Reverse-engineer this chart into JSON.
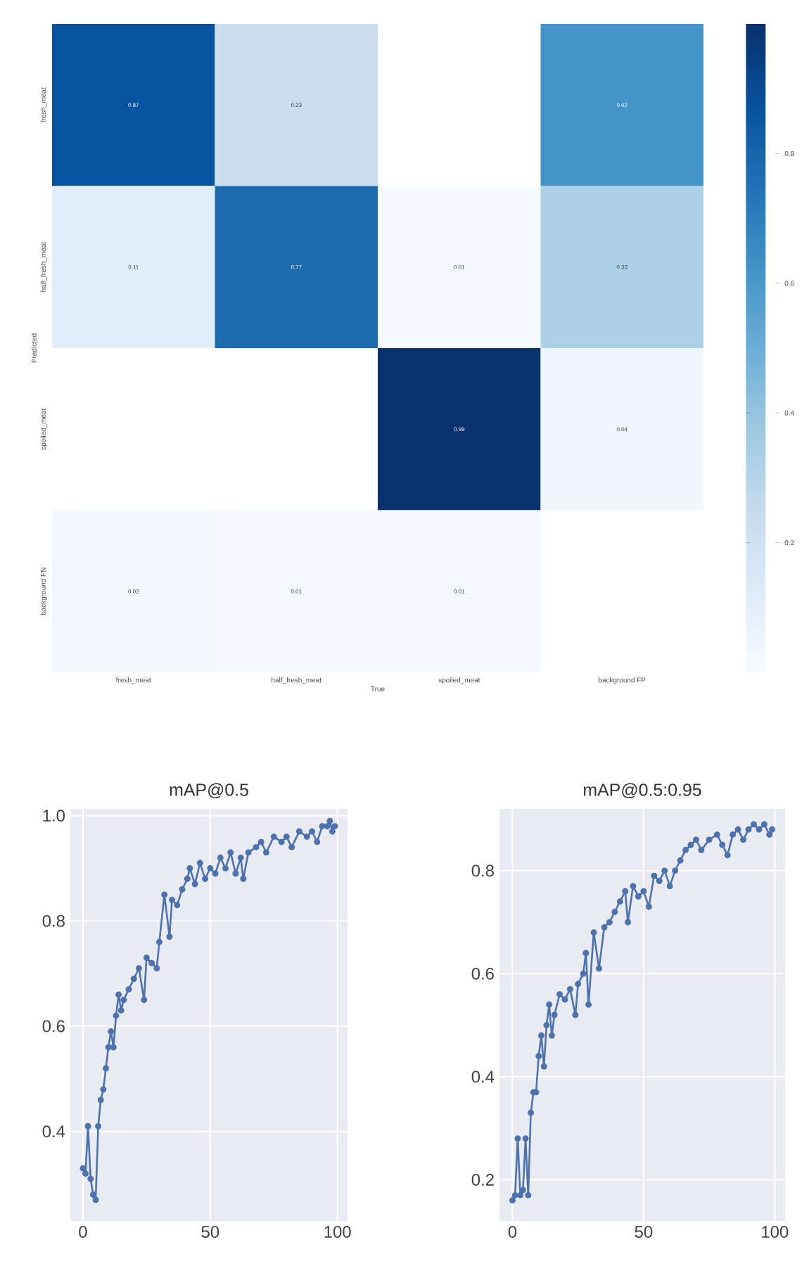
{
  "chart_data": [
    {
      "type": "heatmap",
      "xlabel": "True",
      "ylabel": "Predicted",
      "categories": [
        "fresh_meat",
        "half_fresh_meat",
        "spoiled_meat",
        "background FP"
      ],
      "y_categories": [
        "fresh_meat",
        "half_fresh_meat",
        "spoiled_meat",
        "background FN"
      ],
      "cells": [
        [
          0.87,
          0.23,
          null,
          0.62
        ],
        [
          0.11,
          0.77,
          0.01,
          0.33
        ],
        [
          null,
          null,
          0.99,
          0.04
        ],
        [
          0.02,
          0.01,
          0.01,
          null
        ]
      ],
      "clim": [
        0,
        1
      ],
      "cticks": [
        0.2,
        0.4,
        0.6,
        0.8
      ],
      "data_labels": true
    },
    {
      "type": "line",
      "title": "mAP@0.5",
      "grid": true,
      "marker": "circle",
      "line_style": "solid",
      "xlim": [
        -4.95,
        103.95
      ],
      "ylim": [
        0.23,
        1.013
      ],
      "xticks": [
        0,
        50,
        100
      ],
      "yticks": [
        0.4,
        0.6,
        0.8,
        {
          "value": 1.0,
          "label": "1.0"
        }
      ],
      "series": [
        {
          "color": "#4c72b0",
          "x": [
            0,
            1,
            2,
            3,
            4,
            5,
            6,
            7,
            8,
            9,
            10,
            11,
            12,
            13,
            14,
            15,
            16,
            18,
            20,
            22,
            24,
            25,
            27,
            29,
            30,
            32,
            34,
            35,
            37,
            39,
            41,
            42,
            44,
            46,
            48,
            50,
            52,
            54,
            56,
            58,
            60,
            62,
            63,
            65,
            68,
            70,
            72,
            75,
            78,
            80,
            82,
            85,
            88,
            90,
            92,
            94,
            96,
            97,
            98,
            99
          ],
          "values": [
            0.33,
            0.32,
            0.41,
            0.31,
            0.28,
            0.27,
            0.41,
            0.46,
            0.48,
            0.52,
            0.56,
            0.59,
            0.56,
            0.62,
            0.66,
            0.63,
            0.65,
            0.67,
            0.69,
            0.71,
            0.65,
            0.73,
            0.72,
            0.71,
            0.76,
            0.85,
            0.77,
            0.84,
            0.83,
            0.86,
            0.88,
            0.9,
            0.87,
            0.91,
            0.88,
            0.9,
            0.89,
            0.92,
            0.9,
            0.93,
            0.89,
            0.92,
            0.88,
            0.93,
            0.94,
            0.95,
            0.93,
            0.96,
            0.95,
            0.96,
            0.94,
            0.97,
            0.96,
            0.97,
            0.95,
            0.98,
            0.98,
            0.99,
            0.97,
            0.98
          ]
        }
      ]
    },
    {
      "type": "line",
      "title": "mAP@0.5:0.95",
      "grid": true,
      "marker": "circle",
      "line_style": "solid",
      "xlim": [
        -4.95,
        103.95
      ],
      "ylim": [
        0.12,
        0.92
      ],
      "xticks": [
        0,
        50,
        100
      ],
      "yticks": [
        0.2,
        0.4,
        0.6,
        0.8
      ],
      "series": [
        {
          "color": "#4c72b0",
          "x": [
            0,
            1,
            2,
            3,
            4,
            5,
            6,
            7,
            8,
            9,
            10,
            11,
            12,
            13,
            14,
            15,
            16,
            18,
            20,
            22,
            24,
            25,
            27,
            28,
            29,
            31,
            33,
            35,
            37,
            39,
            41,
            43,
            44,
            46,
            48,
            50,
            52,
            54,
            56,
            58,
            60,
            62,
            64,
            66,
            68,
            70,
            72,
            75,
            78,
            80,
            82,
            84,
            86,
            88,
            90,
            92,
            94,
            96,
            98,
            99
          ],
          "values": [
            0.16,
            0.17,
            0.28,
            0.17,
            0.18,
            0.28,
            0.17,
            0.33,
            0.37,
            0.37,
            0.44,
            0.48,
            0.42,
            0.5,
            0.54,
            0.48,
            0.52,
            0.56,
            0.55,
            0.57,
            0.52,
            0.58,
            0.6,
            0.64,
            0.54,
            0.68,
            0.61,
            0.69,
            0.7,
            0.72,
            0.74,
            0.76,
            0.7,
            0.77,
            0.75,
            0.76,
            0.73,
            0.79,
            0.78,
            0.8,
            0.77,
            0.8,
            0.82,
            0.84,
            0.85,
            0.86,
            0.84,
            0.86,
            0.87,
            0.85,
            0.83,
            0.87,
            0.88,
            0.86,
            0.88,
            0.89,
            0.88,
            0.89,
            0.87,
            0.88
          ]
        }
      ]
    }
  ]
}
